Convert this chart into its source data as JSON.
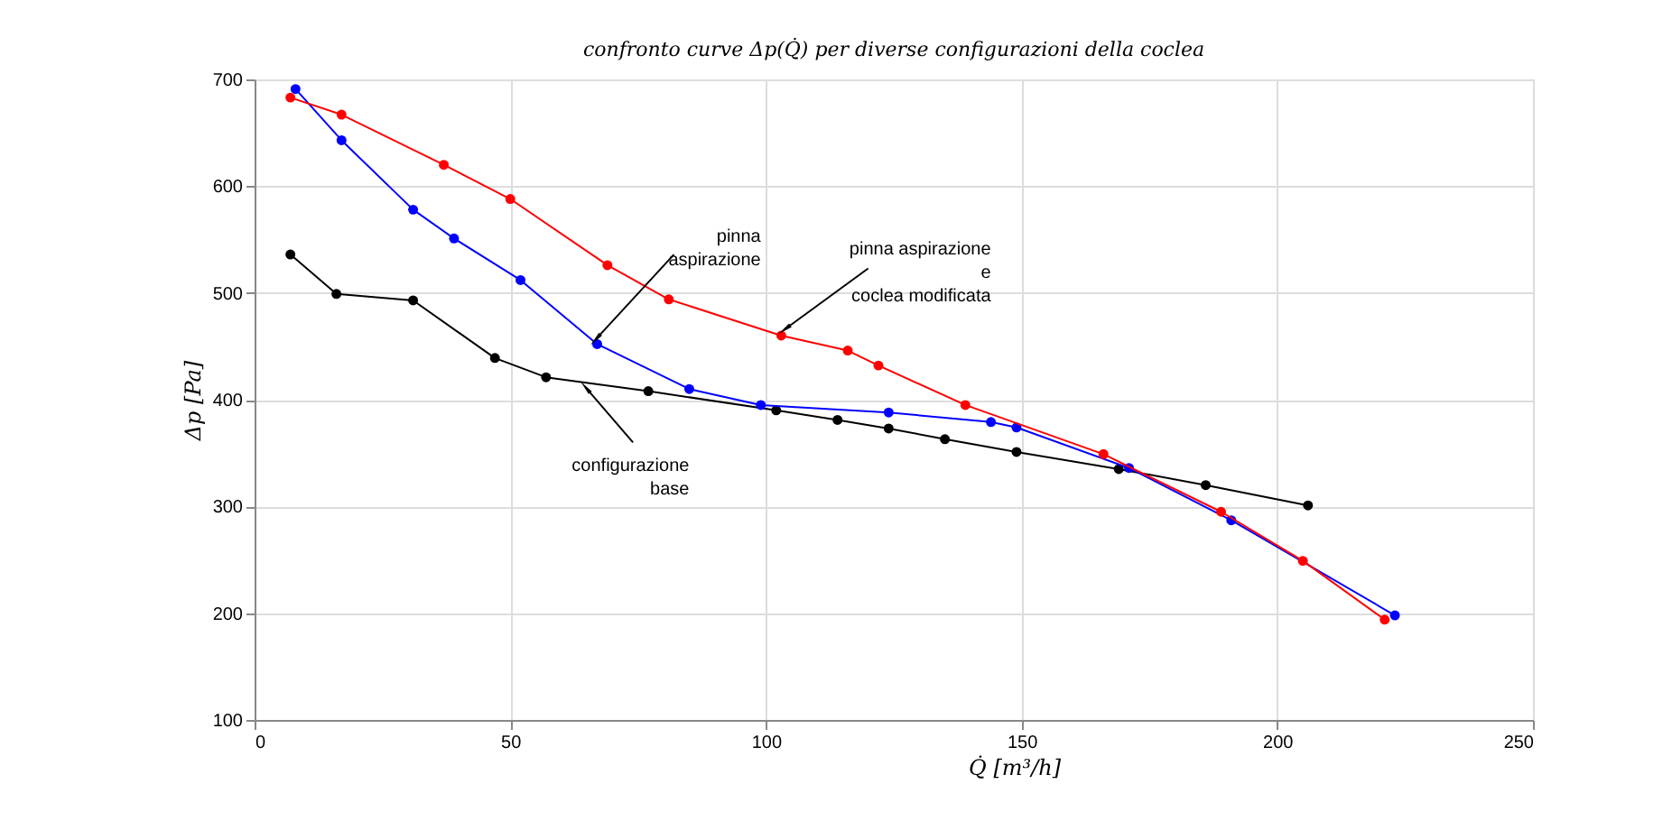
{
  "chart_data": {
    "type": "line",
    "title": "confronto curve Δp(Q̇) per diverse configurazioni della coclea",
    "xlabel": "Q̇ [m³/h]",
    "ylabel": "Δp [Pa]",
    "xlim": [
      0,
      250
    ],
    "xticks": [
      0,
      50,
      100,
      150,
      200,
      250
    ],
    "ylim": [
      100,
      700
    ],
    "yticks": [
      100,
      200,
      300,
      400,
      500,
      600,
      700
    ],
    "grid": true,
    "legend": false,
    "marker": "circle",
    "line_style": "solid",
    "series": [
      {
        "color": "#000000",
        "x": [
          7,
          16,
          31,
          47,
          57,
          77,
          102,
          114,
          124,
          135,
          149,
          169,
          186,
          206
        ],
        "values": [
          536,
          499,
          493,
          439,
          421,
          408,
          390,
          381,
          373,
          363,
          351,
          335,
          320,
          301
        ]
      },
      {
        "color": "#0000ff",
        "x": [
          8,
          17,
          31,
          39,
          52,
          67,
          85,
          99,
          124,
          144,
          149,
          171,
          191,
          223
        ],
        "values": [
          691,
          643,
          578,
          551,
          512,
          452,
          410,
          395,
          388,
          379,
          374,
          336,
          287,
          198
        ]
      },
      {
        "color": "#ff0000",
        "x": [
          7,
          17,
          37,
          50,
          69,
          81,
          103,
          116,
          122,
          139,
          166,
          189,
          205,
          221
        ],
        "values": [
          683,
          667,
          620,
          588,
          526,
          494,
          460,
          446,
          432,
          395,
          349,
          295,
          249,
          194
        ]
      }
    ],
    "annotations": [
      {
        "text": "pinna\naspirazione",
        "x": 67,
        "y": 458
      },
      {
        "text": "pinna aspirazione\ne\ncoclea modificata",
        "x": 104,
        "y": 467
      },
      {
        "text": "configurazione\nbase",
        "x": 65,
        "y": 410
      }
    ]
  }
}
